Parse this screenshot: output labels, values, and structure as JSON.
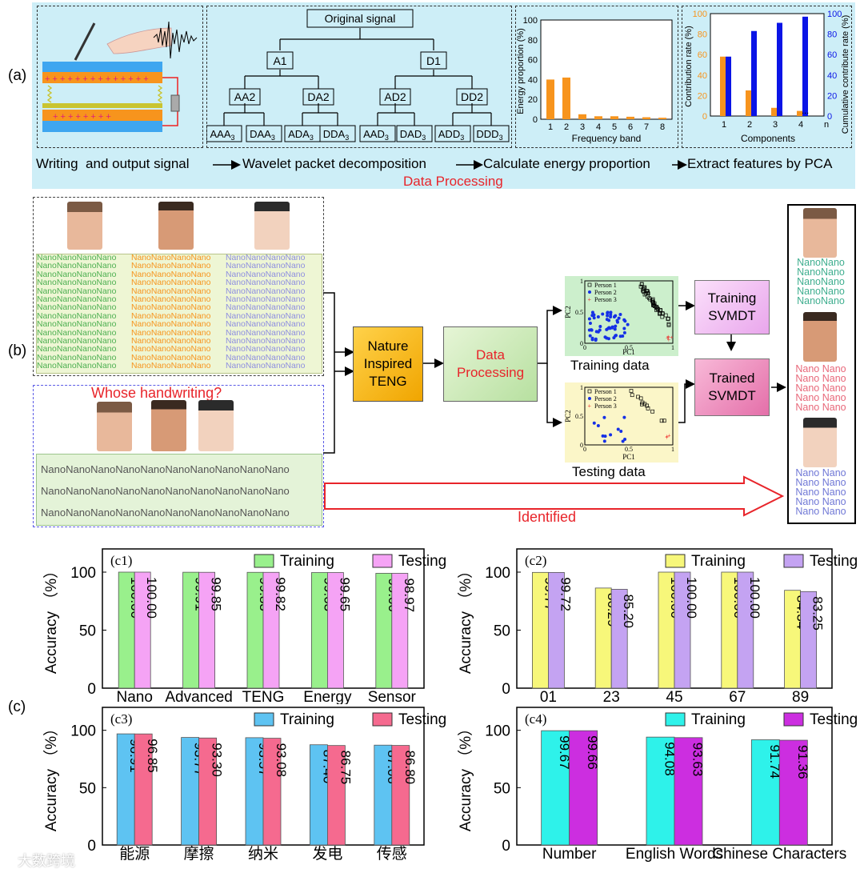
{
  "panel_labels": {
    "a": "(a)",
    "b": "(b)",
    "c": "(c)"
  },
  "a": {
    "tree": {
      "root": "Original signal",
      "level1": [
        "A1",
        "D1"
      ],
      "level2": [
        "AA2",
        "DA2",
        "AD2",
        "DD2"
      ],
      "level3": [
        "AAA",
        "DAA",
        "ADA",
        "DDA",
        "AAD",
        "DAD",
        "ADD",
        "DDD"
      ],
      "sub3": "3"
    },
    "energy_chart": {
      "ylabel": "Energy proportion (%)",
      "xlabel": "Frequency band",
      "yticks": [
        "0",
        "20",
        "40",
        "60",
        "80",
        "100"
      ],
      "xticks": [
        "1",
        "2",
        "3",
        "4",
        "5",
        "6",
        "7",
        "8"
      ]
    },
    "pca_chart": {
      "ylabel_left": "Contribution rate (%)",
      "ylabel_right": "Cumulative contribute rate (%)",
      "xlabel": "Components",
      "yticks": [
        "0",
        "20",
        "40",
        "60",
        "80",
        "100"
      ],
      "xticks": [
        "1",
        "2",
        "3",
        "4",
        "n"
      ],
      "ellipsis": "..."
    },
    "flow": [
      "Writing  and output signal",
      "Wavelet packet decomposition",
      "Calculate energy proportion",
      "Extract features by PCA"
    ],
    "subtitle": "Data Processing",
    "colors": {
      "bg": "#cdeef7",
      "orange": "#f7941d",
      "blue": "#0a14e6"
    }
  },
  "b": {
    "nano": "Nano",
    "question": "Whose handwriting?",
    "boxes": {
      "teng": [
        "Nature",
        "Inspired",
        "TENG"
      ],
      "dp": [
        "Data",
        "Processing"
      ],
      "training_svmdt": [
        "Training",
        "SVMDT"
      ],
      "trained_svmdt": [
        "Trained",
        "SVMDT"
      ]
    },
    "scatter_legend": [
      "Person 1",
      "Person 2",
      "Person 3"
    ],
    "scatter_axes": {
      "x": "PC1",
      "y": "PC2",
      "xticks": [
        "0",
        "0.5",
        "1"
      ],
      "yticks": [
        "0",
        "0.5",
        "1"
      ]
    },
    "training_label": "Training data",
    "testing_label": "Testing data",
    "identified": "Identified"
  },
  "c_shared": {
    "ylabel": "Accuracy （%）",
    "yticks": [
      "0",
      "50",
      "100"
    ]
  },
  "chart_data": [
    {
      "type": "bar",
      "id": "c1",
      "title": "(c1)",
      "categories": [
        "Nano",
        "Advanced",
        "TENG",
        "Energy",
        "Sensor"
      ],
      "series": [
        {
          "name": "Training",
          "values": [
            "100.00",
            "99.91",
            "99.83",
            "99.63",
            "99.00"
          ],
          "color": "#99f08c"
        },
        {
          "name": "Testing",
          "values": [
            "100.00",
            "99.85",
            "99.82",
            "99.65",
            "98.97"
          ],
          "color": "#f5a3f5"
        }
      ],
      "ylabel": "Accuracy （%）",
      "ylim": [
        0,
        120
      ]
    },
    {
      "type": "bar",
      "id": "c2",
      "title": "(c2)",
      "categories": [
        "01",
        "23",
        "45",
        "67",
        "89"
      ],
      "series": [
        {
          "name": "Training",
          "values": [
            "99.77",
            "86.29",
            "100.00",
            "100.00",
            "84.34"
          ],
          "color": "#f7f77a"
        },
        {
          "name": "Testing",
          "values": [
            "99.72",
            "85.20",
            "100.00",
            "100.00",
            "83.25"
          ],
          "color": "#c4a3f2"
        }
      ],
      "ylabel": "Accuracy （%）",
      "ylim": [
        0,
        120
      ]
    },
    {
      "type": "bar",
      "id": "c3",
      "title": "(c3)",
      "categories": [
        "能源",
        "摩擦",
        "纳米",
        "发电",
        "传感"
      ],
      "series": [
        {
          "name": "Training",
          "values": [
            "96.91",
            "93.77",
            "93.57",
            "87.40",
            "87.06"
          ],
          "color": "#5ec3f2"
        },
        {
          "name": "Testing",
          "values": [
            "96.85",
            "93.30",
            "93.08",
            "86.75",
            "86.80"
          ],
          "color": "#f56a8f"
        }
      ],
      "ylabel": "Accuracy （%）",
      "ylim": [
        0,
        120
      ]
    },
    {
      "type": "bar",
      "id": "c4",
      "title": "(c4)",
      "categories": [
        "Number",
        "English Words",
        "Chinese Characters"
      ],
      "series": [
        {
          "name": "Training",
          "values": [
            "99.67",
            "94.08",
            "91.74"
          ],
          "color": "#2ef2ea"
        },
        {
          "name": "Testing",
          "values": [
            "99.66",
            "93.63",
            "91.36"
          ],
          "color": "#cc2ee0"
        }
      ],
      "ylabel": "Accuracy （%）",
      "ylim": [
        0,
        120
      ]
    }
  ],
  "watermark": "大数跨境"
}
